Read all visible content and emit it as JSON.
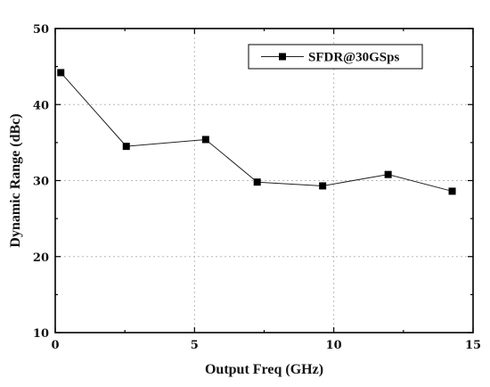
{
  "chart_data": {
    "type": "line",
    "xlabel": "Output Freq (GHz)",
    "ylabel": "Dynamic Range (dBc)",
    "xlim": [
      0,
      15
    ],
    "ylim": [
      10,
      50
    ],
    "x_ticks": [
      0,
      5,
      10,
      15
    ],
    "y_ticks": [
      10,
      20,
      30,
      40,
      50
    ],
    "x_tick_labels": [
      "0",
      "5",
      "10",
      "15"
    ],
    "y_tick_labels": [
      "10",
      "20",
      "30",
      "40",
      "50"
    ],
    "grid": true,
    "legend_position": "top-right",
    "marker": "square",
    "series": [
      {
        "name": "SFDR@30GSps",
        "color": "#000000",
        "x": [
          0.2,
          2.55,
          5.4,
          7.25,
          9.6,
          11.95,
          14.25
        ],
        "y": [
          44.2,
          34.5,
          35.4,
          29.8,
          29.3,
          30.8,
          28.6
        ]
      }
    ]
  }
}
